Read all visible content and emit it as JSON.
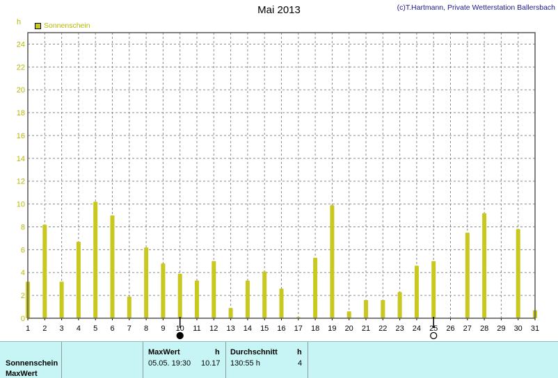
{
  "title": "Mai 2013",
  "copyright": "(c)T.Hartmann, Private Wetterstation Ballersbach",
  "chart_data": {
    "type": "bar",
    "y_unit": "h",
    "legend": [
      {
        "name": "Sonnenschein",
        "color": "#c8c820"
      }
    ],
    "categories": [
      "1",
      "2",
      "3",
      "4",
      "5",
      "6",
      "7",
      "8",
      "9",
      "10",
      "11",
      "12",
      "13",
      "14",
      "15",
      "16",
      "17",
      "18",
      "19",
      "20",
      "21",
      "22",
      "23",
      "24",
      "25",
      "26",
      "27",
      "28",
      "29",
      "30",
      "31"
    ],
    "series": [
      {
        "name": "Sonnenschein",
        "color": "#c8c820",
        "values": [
          3.2,
          8.2,
          3.2,
          6.7,
          10.2,
          9.0,
          1.9,
          6.2,
          4.8,
          3.9,
          3.3,
          5.0,
          0.9,
          3.3,
          4.1,
          2.6,
          0.1,
          5.3,
          9.9,
          0.6,
          1.6,
          1.6,
          2.3,
          4.6,
          5.0,
          0.05,
          7.5,
          9.2,
          0.05,
          7.8,
          0.7
        ]
      }
    ],
    "ylim": [
      0,
      25
    ],
    "yticks": [
      0,
      2,
      4,
      6,
      8,
      10,
      12,
      14,
      16,
      18,
      20,
      22,
      24
    ],
    "grid": true,
    "legend_position": "top-left",
    "moon_markers": [
      {
        "day": 10,
        "phase": "new-moon"
      },
      {
        "day": 25,
        "phase": "full-moon"
      }
    ]
  },
  "footer": {
    "row1_label": "Sonnenschein",
    "row2_label": "MaxWert",
    "max_header": "MaxWert",
    "max_unit": "h",
    "max_datetime": "05.05.  19:30",
    "max_value": "10.17",
    "avg_header": "Durchschnitt",
    "avg_unit": "h",
    "avg_value": "130:55 h",
    "avg_extra": "4"
  }
}
